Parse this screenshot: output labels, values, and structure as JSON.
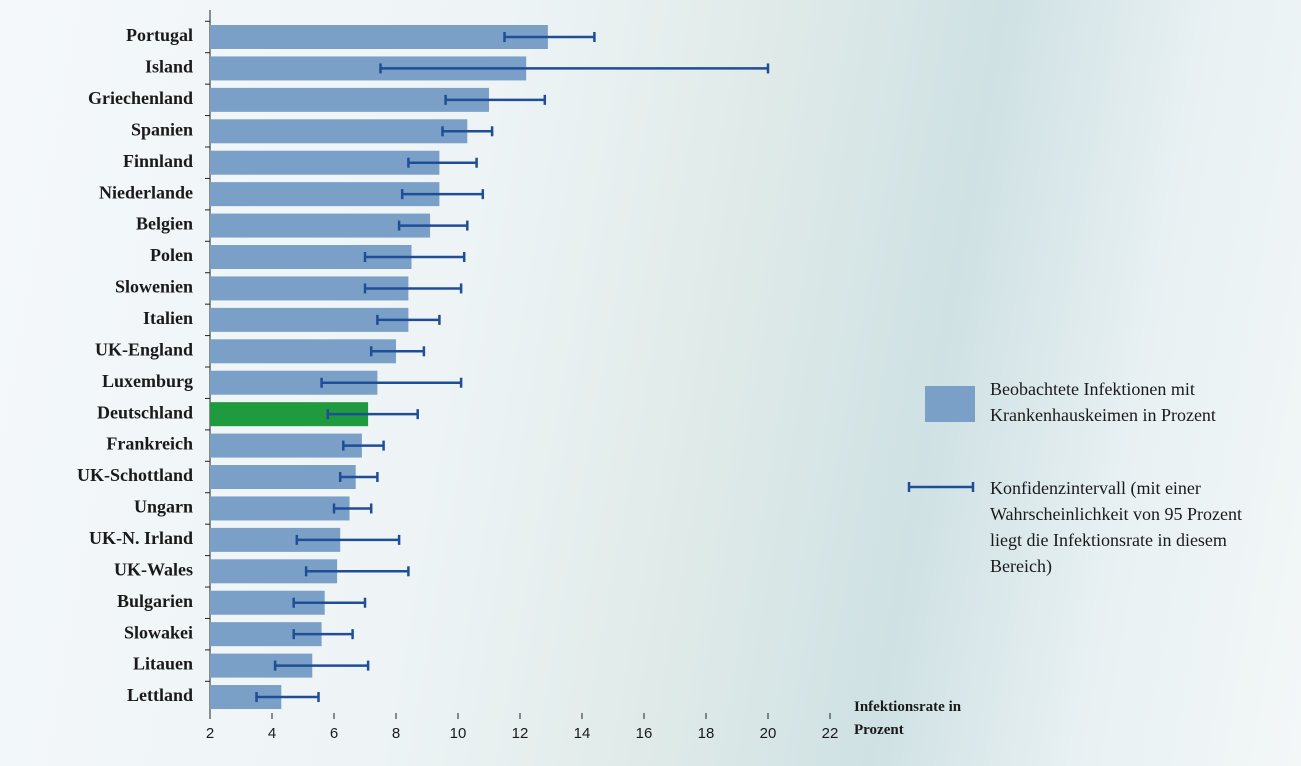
{
  "chart_data": {
    "type": "bar",
    "orientation": "horizontal",
    "categories": [
      "Portugal",
      "Island",
      "Griechenland",
      "Spanien",
      "Finnland",
      "Niederlande",
      "Belgien",
      "Polen",
      "Slowenien",
      "Italien",
      "UK-England",
      "Luxemburg",
      "Deutschland",
      "Frankreich",
      "UK-Schottland",
      "Ungarn",
      "UK-N. Irland",
      "UK-Wales",
      "Bulgarien",
      "Slowakei",
      "Litauen",
      "Lettland"
    ],
    "series": [
      {
        "name": "Beobachtete Infektionen mit Krankenhauskeimen in Prozent",
        "color": "#7aa0c8",
        "values": [
          12.9,
          12.2,
          11.0,
          10.3,
          9.4,
          9.4,
          9.1,
          8.5,
          8.4,
          8.4,
          8.0,
          7.4,
          7.1,
          6.9,
          6.7,
          6.5,
          6.2,
          6.1,
          5.7,
          5.6,
          5.3,
          4.3
        ]
      },
      {
        "name": "Konfidenzintervall (mit einer Wahrscheinlichkeit von 95 Prozent liegt die Infektionsrate in diesem Bereich)",
        "color": "#1f4e97",
        "low": [
          11.5,
          7.5,
          9.6,
          9.5,
          8.4,
          8.2,
          8.1,
          7.0,
          7.0,
          7.4,
          7.2,
          5.6,
          5.8,
          6.3,
          6.2,
          6.0,
          4.8,
          5.1,
          4.7,
          4.7,
          4.1,
          3.5
        ],
        "high": [
          14.4,
          20.0,
          12.8,
          11.1,
          10.6,
          10.8,
          10.3,
          10.2,
          10.1,
          9.4,
          8.9,
          10.1,
          8.7,
          7.6,
          7.4,
          7.2,
          8.1,
          8.4,
          7.0,
          6.6,
          7.1,
          5.5
        ]
      }
    ],
    "highlight_category": "Deutschland",
    "highlight_color": "#1f9a3e",
    "x_label": "Infektionsrate in Prozent",
    "xlim": [
      2,
      22
    ],
    "xticks": [
      2,
      4,
      6,
      8,
      10,
      12,
      14,
      16,
      18,
      20,
      22
    ]
  }
}
